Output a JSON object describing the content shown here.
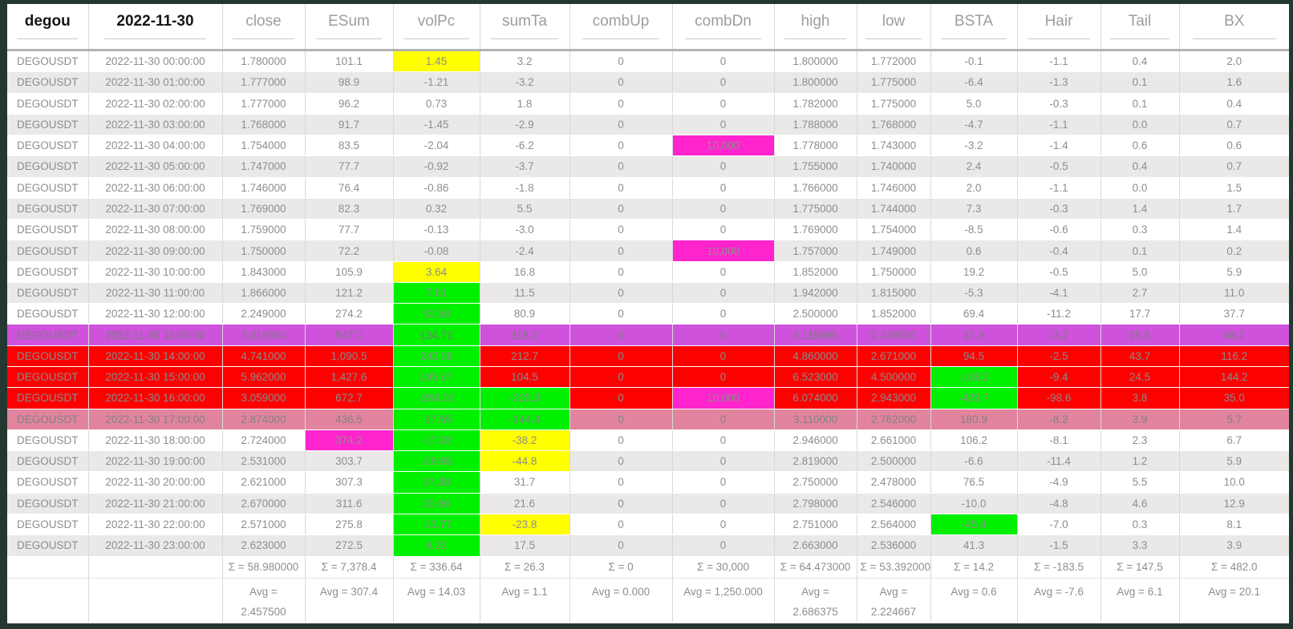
{
  "table": {
    "columns": [
      {
        "label": "degou",
        "dark": true
      },
      {
        "label": "2022-11-30",
        "dark": true
      },
      {
        "label": "close"
      },
      {
        "label": "ESum"
      },
      {
        "label": "volPc"
      },
      {
        "label": "sumTa"
      },
      {
        "label": "combUp"
      },
      {
        "label": "combDn"
      },
      {
        "label": "high"
      },
      {
        "label": "low"
      },
      {
        "label": "BSTA"
      },
      {
        "label": "Hair"
      },
      {
        "label": "Tail"
      },
      {
        "label": "BX"
      }
    ],
    "rows": [
      {
        "bg": "",
        "cells": [
          "DEGOUSDT",
          "2022-11-30 00:00:00",
          "1.780000",
          "101.1",
          "1.45",
          "3.2",
          "0",
          "0",
          "1.800000",
          "1.772000",
          "-0.1",
          "-1.1",
          "0.4",
          "2.0"
        ],
        "cell_bg": {
          "4": "yellow"
        }
      },
      {
        "bg": "",
        "cells": [
          "DEGOUSDT",
          "2022-11-30 01:00:00",
          "1.777000",
          "98.9",
          "-1.21",
          "-3.2",
          "0",
          "0",
          "1.800000",
          "1.775000",
          "-6.4",
          "-1.3",
          "0.1",
          "1.6"
        ],
        "cell_bg": {}
      },
      {
        "bg": "",
        "cells": [
          "DEGOUSDT",
          "2022-11-30 02:00:00",
          "1.777000",
          "96.2",
          "0.73",
          "1.8",
          "0",
          "0",
          "1.782000",
          "1.775000",
          "5.0",
          "-0.3",
          "0.1",
          "0.4"
        ],
        "cell_bg": {}
      },
      {
        "bg": "",
        "cells": [
          "DEGOUSDT",
          "2022-11-30 03:00:00",
          "1.768000",
          "91.7",
          "-1.45",
          "-2.9",
          "0",
          "0",
          "1.788000",
          "1.768000",
          "-4.7",
          "-1.1",
          "0.0",
          "0.7"
        ],
        "cell_bg": {}
      },
      {
        "bg": "",
        "cells": [
          "DEGOUSDT",
          "2022-11-30 04:00:00",
          "1.754000",
          "83.5",
          "-2.04",
          "-6.2",
          "0",
          "10,000",
          "1.778000",
          "1.743000",
          "-3.2",
          "-1.4",
          "0.6",
          "0.6"
        ],
        "cell_bg": {
          "7": "magenta"
        }
      },
      {
        "bg": "",
        "cells": [
          "DEGOUSDT",
          "2022-11-30 05:00:00",
          "1.747000",
          "77.7",
          "-0.92",
          "-3.7",
          "0",
          "0",
          "1.755000",
          "1.740000",
          "2.4",
          "-0.5",
          "0.4",
          "0.7"
        ],
        "cell_bg": {}
      },
      {
        "bg": "",
        "cells": [
          "DEGOUSDT",
          "2022-11-30 06:00:00",
          "1.746000",
          "76.4",
          "-0.86",
          "-1.8",
          "0",
          "0",
          "1.766000",
          "1.746000",
          "2.0",
          "-1.1",
          "0.0",
          "1.5"
        ],
        "cell_bg": {}
      },
      {
        "bg": "",
        "cells": [
          "DEGOUSDT",
          "2022-11-30 07:00:00",
          "1.769000",
          "82.3",
          "0.32",
          "5.5",
          "0",
          "0",
          "1.775000",
          "1.744000",
          "7.3",
          "-0.3",
          "1.4",
          "1.7"
        ],
        "cell_bg": {}
      },
      {
        "bg": "",
        "cells": [
          "DEGOUSDT",
          "2022-11-30 08:00:00",
          "1.759000",
          "77.7",
          "-0.13",
          "-3.0",
          "0",
          "0",
          "1.769000",
          "1.754000",
          "-8.5",
          "-0.6",
          "0.3",
          "1.4"
        ],
        "cell_bg": {}
      },
      {
        "bg": "",
        "cells": [
          "DEGOUSDT",
          "2022-11-30 09:00:00",
          "1.750000",
          "72.2",
          "-0.08",
          "-2.4",
          "0",
          "10,000",
          "1.757000",
          "1.749000",
          "0.6",
          "-0.4",
          "0.1",
          "0.2"
        ],
        "cell_bg": {
          "7": "magenta"
        }
      },
      {
        "bg": "",
        "cells": [
          "DEGOUSDT",
          "2022-11-30 10:00:00",
          "1.843000",
          "105.9",
          "3.64",
          "16.8",
          "0",
          "0",
          "1.852000",
          "1.750000",
          "19.2",
          "-0.5",
          "5.0",
          "5.9"
        ],
        "cell_bg": {
          "4": "yellow"
        }
      },
      {
        "bg": "",
        "cells": [
          "DEGOUSDT",
          "2022-11-30 11:00:00",
          "1.866000",
          "121.2",
          "7.61",
          "11.5",
          "0",
          "0",
          "1.942000",
          "1.815000",
          "-5.3",
          "-4.1",
          "2.7",
          "11.0"
        ],
        "cell_bg": {
          "4": "green"
        }
      },
      {
        "bg": "",
        "cells": [
          "DEGOUSDT",
          "2022-11-30 12:00:00",
          "2.249000",
          "274.2",
          "52.58",
          "80.9",
          "0",
          "0",
          "2.500000",
          "1.852000",
          "69.4",
          "-11.2",
          "17.7",
          "37.7"
        ],
        "cell_bg": {
          "4": "green"
        }
      },
      {
        "bg": "violet",
        "cells": [
          "DEGOUSDT",
          "2022-11-30 13:00:00",
          "3.019000",
          "547.0",
          "134.71",
          "118.2",
          "0",
          "0",
          "3.115000",
          "2.248000",
          "37.3",
          "-3.2",
          "25.5",
          "68.2"
        ],
        "cell_bg": {
          "4": "green"
        }
      },
      {
        "bg": "red",
        "cells": [
          "DEGOUSDT",
          "2022-11-30 14:00:00",
          "4.741000",
          "1,090.5",
          "242.08",
          "212.7",
          "0",
          "0",
          "4.860000",
          "2.671000",
          "94.5",
          "-2.5",
          "43.7",
          "116.2"
        ],
        "cell_bg": {
          "4": "green"
        }
      },
      {
        "bg": "red",
        "cells": [
          "DEGOUSDT",
          "2022-11-30 15:00:00",
          "5.962000",
          "1,427.6",
          "195.97",
          "104.5",
          "0",
          "0",
          "6.523000",
          "4.500000",
          "-108.2",
          "-9.4",
          "24.5",
          "144.2"
        ],
        "cell_bg": {
          "4": "green",
          "10": "green"
        }
      },
      {
        "bg": "red",
        "cells": [
          "DEGOUSDT",
          "2022-11-30 16:00:00",
          "3.059000",
          "672.7",
          "-263.02",
          "-325.3",
          "0",
          "10,000",
          "6.074000",
          "2.943000",
          "-429.7",
          "-98.6",
          "3.8",
          "35.0"
        ],
        "cell_bg": {
          "4": "green",
          "5": "green",
          "7": "magenta",
          "10": "green"
        }
      },
      {
        "bg": "pink",
        "cells": [
          "DEGOUSDT",
          "2022-11-30 17:00:00",
          "2.874000",
          "436.5",
          "-37.55",
          "-144.4",
          "0",
          "0",
          "3.110000",
          "2.762000",
          "180.9",
          "-8.2",
          "3.9",
          "5.7"
        ],
        "cell_bg": {
          "4": "green",
          "5": "green"
        }
      },
      {
        "bg": "",
        "cells": [
          "DEGOUSDT",
          "2022-11-30 18:00:00",
          "2.724000",
          "374.2",
          "-17.32",
          "-38.2",
          "0",
          "0",
          "2.946000",
          "2.661000",
          "106.2",
          "-8.1",
          "2.3",
          "6.7"
        ],
        "cell_bg": {
          "3": "magenta",
          "4": "green",
          "5": "yellow"
        }
      },
      {
        "bg": "",
        "cells": [
          "DEGOUSDT",
          "2022-11-30 19:00:00",
          "2.531000",
          "303.7",
          "-28.65",
          "-44.8",
          "0",
          "0",
          "2.819000",
          "2.500000",
          "-6.6",
          "-11.4",
          "1.2",
          "5.9"
        ],
        "cell_bg": {
          "4": "green",
          "5": "yellow"
        }
      },
      {
        "bg": "",
        "cells": [
          "DEGOUSDT",
          "2022-11-30 20:00:00",
          "2.621000",
          "307.3",
          "37.38",
          "31.7",
          "0",
          "0",
          "2.750000",
          "2.478000",
          "76.5",
          "-4.9",
          "5.5",
          "10.0"
        ],
        "cell_bg": {
          "4": "green"
        }
      },
      {
        "bg": "",
        "cells": [
          "DEGOUSDT",
          "2022-11-30 21:00:00",
          "2.670000",
          "311.6",
          "20.96",
          "21.6",
          "0",
          "0",
          "2.798000",
          "2.546000",
          "-10.0",
          "-4.8",
          "4.6",
          "12.9"
        ],
        "cell_bg": {
          "4": "green"
        }
      },
      {
        "bg": "",
        "cells": [
          "DEGOUSDT",
          "2022-11-30 22:00:00",
          "2.571000",
          "275.8",
          "-13.77",
          "-23.8",
          "0",
          "0",
          "2.751000",
          "2.564000",
          "-45.4",
          "-7.0",
          "0.3",
          "8.1"
        ],
        "cell_bg": {
          "4": "green",
          "5": "yellow",
          "10": "green"
        }
      },
      {
        "bg": "",
        "cells": [
          "DEGOUSDT",
          "2022-11-30 23:00:00",
          "2.623000",
          "272.5",
          "6.22",
          "17.5",
          "0",
          "0",
          "2.663000",
          "2.536000",
          "41.3",
          "-1.5",
          "3.3",
          "3.9"
        ],
        "cell_bg": {
          "4": "green"
        }
      }
    ],
    "footer": {
      "sum": [
        "",
        "",
        "Σ = 58.980000",
        "Σ = 7,378.4",
        "Σ = 336.64",
        "Σ = 26.3",
        "Σ = 0",
        "Σ = 30,000",
        "Σ = 64.473000",
        "Σ = 53.392000",
        "Σ = 14.2",
        "Σ = -183.5",
        "Σ = 147.5",
        "Σ = 482.0"
      ],
      "avg": [
        "",
        "",
        "Avg = 2.457500",
        "Avg = 307.4",
        "Avg = 14.03",
        "Avg = 1.1",
        "Avg = 0.000",
        "Avg = 1,250.000",
        "Avg = 2.686375",
        "Avg = 2.224667",
        "Avg = 0.6",
        "Avg = -7.6",
        "Avg = 6.1",
        "Avg = 20.1"
      ]
    }
  },
  "colors": {
    "yellow": "#ffff00",
    "green": "#00f000",
    "magenta": "#ff24cd",
    "violet": "#cf52dd",
    "red": "#fd0000",
    "pink": "#e2849d",
    "stripe": "#ebe8e8",
    "border_dark": "#243831"
  }
}
